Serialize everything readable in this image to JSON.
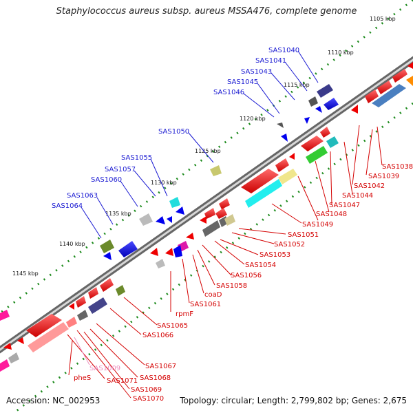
{
  "title": "Staphylococcus aureus subsp. aureus MSSA476, complete genome",
  "accession": "Accession: NC_002953",
  "topology": "Topology: circular; Length: 2,799,802 bp; Genes: 2,675",
  "kbp_labels": [
    "1105 kbp",
    "1110 kbp",
    "1115 kbp",
    "1120 kbp",
    "1125 kbp",
    "1130 kbp",
    "1135 kbp",
    "1140 kbp",
    "1145 kbp"
  ],
  "outer_labels": [
    "SAS1040",
    "SAS1041",
    "SAS1043",
    "SAS1045",
    "SAS1046",
    "SAS1050",
    "SAS1055",
    "SAS1057",
    "SAS1060",
    "SAS1063",
    "SAS1064"
  ],
  "inner_labels": [
    "SAS1038",
    "SAS1039",
    "SAS1042",
    "SAS1044",
    "SAS1047",
    "SAS1048",
    "SAS1049",
    "SAS1051",
    "SAS1052",
    "SAS1053",
    "SAS1054",
    "SAS1056",
    "SAS1058",
    "coaD",
    "SAS1061",
    "rpmF",
    "SAS1065",
    "SAS1066",
    "SAS1067",
    "SAS1068",
    "SAS1069",
    "SAS1070",
    "SAS1071",
    "SAS1009",
    "pheS"
  ],
  "colors": {
    "forward": "#ff0000",
    "reverse": "#0000ff",
    "backbone": "#888888",
    "ticks": "#1c8a1c"
  }
}
